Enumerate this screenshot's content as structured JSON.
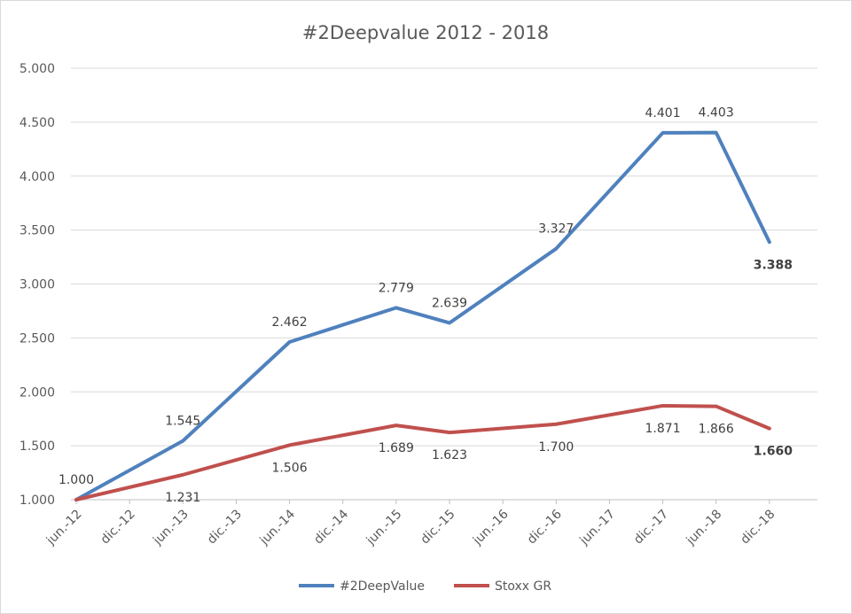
{
  "chart_data": {
    "type": "line",
    "title": "#2Deepvalue 2012 - 2018",
    "categories": [
      "jun.-12",
      "dic.-12",
      "jun.-13",
      "dic.-13",
      "jun.-14",
      "dic.-14",
      "jun.-15",
      "dic.-15",
      "jun.-16",
      "dic.-16",
      "jun.-17",
      "dic.-17",
      "jun.-18",
      "dic.-18"
    ],
    "x_positions": [
      0,
      1,
      2,
      3,
      4,
      5,
      6,
      7,
      8,
      9,
      10,
      11,
      12,
      13
    ],
    "ylim": [
      1.0,
      5.0
    ],
    "yticks": [
      "1.000",
      "1.500",
      "2.000",
      "2.500",
      "3.000",
      "3.500",
      "4.000",
      "4.500",
      "5.000"
    ],
    "grid": true,
    "legend_position": "bottom",
    "series": [
      {
        "name": "#2DeepValue",
        "color": "#4f81bd",
        "x": [
          0,
          2,
          4,
          6,
          7,
          9,
          11,
          12,
          13
        ],
        "values": [
          1.0,
          1.545,
          2.462,
          2.779,
          2.639,
          3.327,
          4.401,
          4.403,
          3.388
        ],
        "labels": [
          "1.000",
          "1.545",
          "2.462",
          "2.779",
          "2.639",
          "3.327",
          "4.401",
          "4.403",
          "3.388"
        ],
        "label_positions": [
          "above",
          "above",
          "above",
          "above",
          "above",
          "above",
          "above",
          "above",
          "below"
        ],
        "label_bold": [
          false,
          false,
          false,
          false,
          false,
          false,
          false,
          false,
          true
        ]
      },
      {
        "name": "Stoxx GR",
        "color": "#c0504d",
        "x": [
          0,
          2,
          4,
          6,
          7,
          9,
          11,
          12,
          13
        ],
        "values": [
          1.0,
          1.231,
          1.506,
          1.689,
          1.623,
          1.7,
          1.871,
          1.866,
          1.66
        ],
        "labels": [
          "",
          "1.231",
          "1.506",
          "1.689",
          "1.623",
          "1.700",
          "1.871",
          "1.866",
          "1.660"
        ],
        "label_positions": [
          "below",
          "below",
          "below",
          "below",
          "below",
          "below",
          "below",
          "below",
          "below"
        ],
        "label_bold": [
          false,
          false,
          false,
          false,
          false,
          false,
          false,
          false,
          true
        ]
      }
    ]
  }
}
